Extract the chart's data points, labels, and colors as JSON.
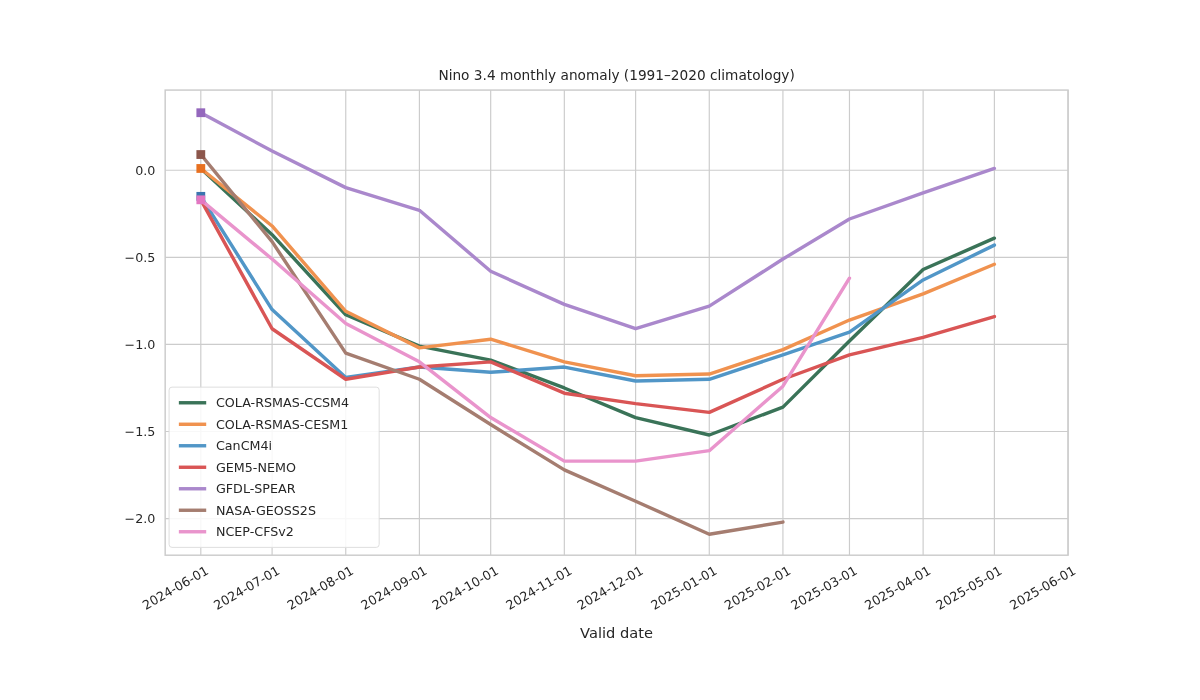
{
  "chart_data": {
    "type": "line",
    "title": "Nino 3.4 monthly anomaly (1991–2020 climatology)",
    "xlabel": "Valid date",
    "x": [
      "2024-06-01",
      "2024-07-01",
      "2024-08-01",
      "2024-09-01",
      "2024-10-01",
      "2024-11-01",
      "2024-12-01",
      "2025-01-01",
      "2025-02-01",
      "2025-03-01",
      "2025-04-01",
      "2025-05-01"
    ],
    "xlim": [
      "2024-05-17",
      "2025-06-01"
    ],
    "xticks": [
      "2024-06-01",
      "2024-07-01",
      "2024-08-01",
      "2024-09-01",
      "2024-10-01",
      "2024-11-01",
      "2024-12-01",
      "2025-01-01",
      "2025-02-01",
      "2025-03-01",
      "2025-04-01",
      "2025-05-01",
      "2025-06-01"
    ],
    "ylim": [
      -2.21,
      0.46
    ],
    "yticks": [
      {
        "value": 0,
        "label": "0.0"
      },
      {
        "value": -0.5,
        "label": "−0.5"
      },
      {
        "value": -1,
        "label": "−1.0"
      },
      {
        "value": -1.5,
        "label": "−1.5"
      },
      {
        "value": -2,
        "label": "−2.0"
      }
    ],
    "grid": true,
    "legend": "bottom left",
    "series": [
      {
        "name": "COLA-RSMAS-CCSM4",
        "color": "#3a7358",
        "values": [
          0.01,
          -0.37,
          -0.83,
          -1.01,
          -1.09,
          -1.25,
          -1.42,
          -1.52,
          -1.36,
          -0.98,
          -0.57,
          -0.39
        ]
      },
      {
        "name": "COLA-RSMAS-CESM1",
        "color": "#f0924f",
        "values": [
          0.01,
          -0.32,
          -0.81,
          -1.02,
          -0.97,
          -1.1,
          -1.18,
          -1.17,
          -1.03,
          -0.86,
          -0.71,
          -0.54
        ]
      },
      {
        "name": "CanCM4i",
        "color": "#5196c7",
        "values": [
          -0.15,
          -0.8,
          -1.19,
          -1.13,
          -1.16,
          -1.13,
          -1.21,
          -1.2,
          -1.06,
          -0.93,
          -0.63,
          -0.43
        ]
      },
      {
        "name": "GEM5-NEMO",
        "color": "#d95555",
        "values": [
          -0.17,
          -0.91,
          -1.2,
          -1.13,
          -1.1,
          -1.28,
          -1.34,
          -1.39,
          -1.2,
          -1.06,
          -0.96,
          -0.84
        ]
      },
      {
        "name": "GFDL-SPEAR",
        "color": "#aa88cc",
        "values": [
          0.33,
          0.11,
          -0.1,
          -0.23,
          -0.58,
          -0.77,
          -0.91,
          -0.78,
          -0.51,
          -0.28,
          -0.13,
          0.01
        ]
      },
      {
        "name": "NASA-GEOSS2S",
        "color": "#a57d70",
        "values": [
          0.09,
          -0.41,
          -1.05,
          -1.2,
          -1.46,
          -1.72,
          -1.9,
          -2.09,
          -2.02,
          null,
          null,
          null
        ]
      },
      {
        "name": "NCEP-CFSv2",
        "color": "#e994cc",
        "values": [
          -0.17,
          -0.51,
          -0.88,
          -1.1,
          -1.42,
          -1.67,
          -1.67,
          -1.61,
          -1.24,
          -0.62,
          null,
          null
        ]
      },
      {
        "type": "scatter",
        "marker": "square",
        "color": "#3b75af",
        "x": [
          "2024-06-01"
        ],
        "values": [
          -0.15
        ]
      },
      {
        "type": "scatter",
        "marker": "square",
        "color": "#9467bd",
        "x": [
          "2024-06-01"
        ],
        "values": [
          0.33
        ]
      },
      {
        "type": "scatter",
        "marker": "square",
        "color": "#8c564b",
        "x": [
          "2024-06-01"
        ],
        "values": [
          0.09
        ]
      },
      {
        "type": "scatter",
        "marker": "square",
        "color": "#e87020",
        "x": [
          "2024-06-01"
        ],
        "values": [
          0.01
        ]
      },
      {
        "type": "scatter",
        "marker": "square",
        "color": "#e377c2",
        "x": [
          "2024-06-01"
        ],
        "values": [
          -0.17
        ]
      }
    ]
  }
}
